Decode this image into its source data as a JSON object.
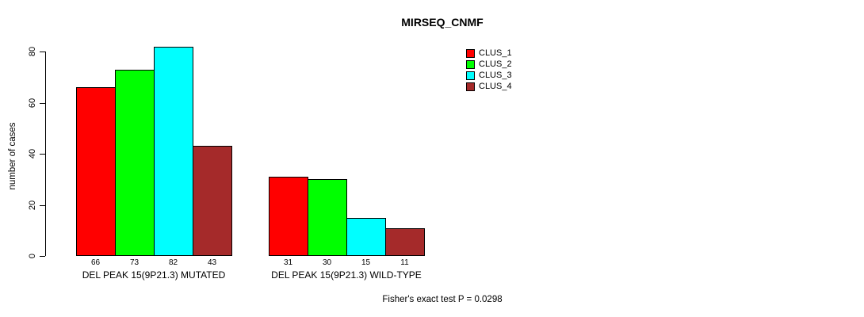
{
  "title": "MIRSEQ_CNMF",
  "ylabel": "number of cases",
  "footnote": "Fisher's exact test P = 0.0298",
  "colors": {
    "background": "#FFFFFF",
    "axis": "#000000",
    "bar_border": "#000000"
  },
  "legend": [
    {
      "label": "CLUS_1",
      "color": "#FF0000"
    },
    {
      "label": "CLUS_2",
      "color": "#00FF00"
    },
    {
      "label": "CLUS_3",
      "color": "#00FFFF"
    },
    {
      "label": "CLUS_4",
      "color": "#A52A2A"
    }
  ],
  "chart_data": {
    "type": "bar",
    "title": "MIRSEQ_CNMF",
    "xlabel": "",
    "ylabel": "number of cases",
    "ylim": [
      0,
      80
    ],
    "yticks": [
      0,
      20,
      40,
      60,
      80
    ],
    "grid": false,
    "legend_position": "top-right",
    "bar_value_labels": true,
    "categories": [
      "DEL PEAK 15(9P21.3) MUTATED",
      "DEL PEAK 15(9P21.3) WILD-TYPE"
    ],
    "series": [
      {
        "name": "CLUS_1",
        "color": "#FF0000",
        "values": [
          66,
          31
        ]
      },
      {
        "name": "CLUS_2",
        "color": "#00FF00",
        "values": [
          73,
          30
        ]
      },
      {
        "name": "CLUS_3",
        "color": "#00FFFF",
        "values": [
          82,
          15
        ]
      },
      {
        "name": "CLUS_4",
        "color": "#A52A2A",
        "values": [
          43,
          11
        ]
      }
    ],
    "annotation": "Fisher's exact test P = 0.0298"
  }
}
